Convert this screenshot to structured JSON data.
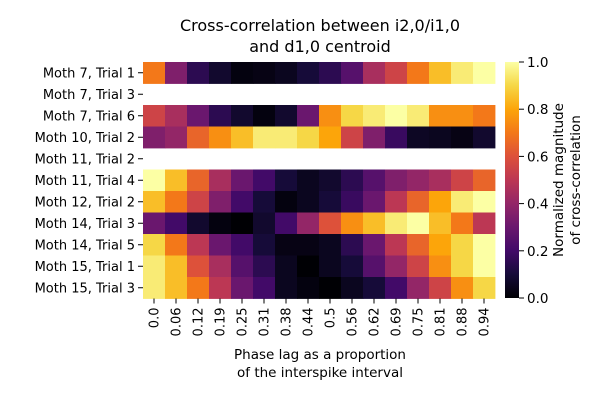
{
  "chart_data": {
    "type": "heatmap",
    "title_lines": [
      "Cross-correlation between i2,0/i1,0",
      "and d1,0 centroid"
    ],
    "xlabel_lines": [
      "Phase lag as a proportion",
      "of the interspike interval"
    ],
    "ylabel": "",
    "x_categories": [
      "0.0",
      "0.06",
      "0.12",
      "0.19",
      "0.25",
      "0.31",
      "0.38",
      "0.44",
      "0.5",
      "0.56",
      "0.62",
      "0.69",
      "0.75",
      "0.81",
      "0.88",
      "0.94"
    ],
    "y_categories": [
      "Moth 7, Trial 1",
      "Moth 7, Trial 3",
      "Moth 7, Trial 6",
      "Moth 10, Trial 2",
      "Moth 11, Trial 2",
      "Moth 11, Trial 4",
      "Moth 12, Trial 2",
      "Moth 14, Trial 3",
      "Moth 14, Trial 5",
      "Moth 15, Trial 1",
      "Moth 15, Trial 3"
    ],
    "values": [
      [
        0.7,
        0.35,
        0.15,
        0.08,
        0.02,
        0.03,
        0.05,
        0.1,
        0.15,
        0.25,
        0.45,
        0.55,
        0.7,
        0.85,
        0.95,
        1.0
      ],
      [
        null,
        null,
        null,
        null,
        null,
        null,
        null,
        null,
        null,
        null,
        null,
        null,
        null,
        null,
        null,
        null
      ],
      [
        0.55,
        0.45,
        0.3,
        0.15,
        0.08,
        0.02,
        0.08,
        0.3,
        0.75,
        0.9,
        0.95,
        1.0,
        0.95,
        0.75,
        0.75,
        0.7
      ],
      [
        0.35,
        0.4,
        0.65,
        0.75,
        0.85,
        0.95,
        0.95,
        0.9,
        0.8,
        0.55,
        0.35,
        0.18,
        0.06,
        0.05,
        0.03,
        0.08
      ],
      [
        null,
        null,
        null,
        null,
        null,
        null,
        null,
        null,
        null,
        null,
        null,
        null,
        null,
        null,
        null,
        null
      ],
      [
        1.0,
        0.85,
        0.65,
        0.45,
        0.3,
        0.2,
        0.1,
        0.05,
        0.08,
        0.15,
        0.25,
        0.35,
        0.4,
        0.45,
        0.55,
        0.65
      ],
      [
        0.85,
        0.7,
        0.55,
        0.35,
        0.2,
        0.1,
        0.02,
        0.05,
        0.1,
        0.18,
        0.3,
        0.5,
        0.65,
        0.8,
        0.95,
        1.0
      ],
      [
        0.3,
        0.2,
        0.08,
        0.02,
        0.0,
        0.08,
        0.2,
        0.4,
        0.6,
        0.75,
        0.85,
        0.95,
        1.0,
        0.85,
        0.7,
        0.5
      ],
      [
        0.9,
        0.7,
        0.5,
        0.3,
        0.2,
        0.1,
        0.03,
        0.03,
        0.05,
        0.15,
        0.3,
        0.5,
        0.65,
        0.8,
        0.9,
        1.0
      ],
      [
        0.95,
        0.85,
        0.6,
        0.45,
        0.25,
        0.15,
        0.05,
        0.0,
        0.05,
        0.1,
        0.25,
        0.4,
        0.55,
        0.75,
        0.9,
        1.0
      ],
      [
        0.95,
        0.85,
        0.7,
        0.5,
        0.3,
        0.2,
        0.05,
        0.02,
        0.0,
        0.05,
        0.1,
        0.2,
        0.4,
        0.55,
        0.75,
        0.9
      ]
    ],
    "colormap": "inferno",
    "colorbar": {
      "range": [
        0.0,
        1.0
      ],
      "ticks": [
        "0.0",
        "0.2",
        "0.4",
        "0.6",
        "0.8",
        "1.0"
      ],
      "label_lines": [
        "Normalized magnitude",
        "of cross-correlation"
      ]
    },
    "grid": false,
    "legend": "none"
  }
}
